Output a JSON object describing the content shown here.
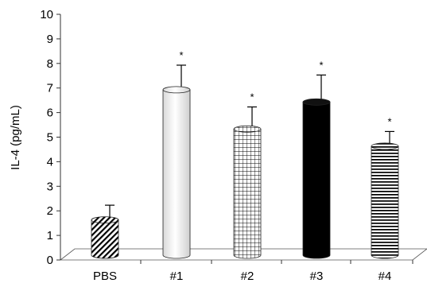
{
  "chart_data": {
    "type": "bar",
    "categories": [
      "PBS",
      "#1",
      "#2",
      "#3",
      "#4"
    ],
    "values": [
      1.5,
      6.8,
      5.2,
      6.3,
      4.5
    ],
    "errors": [
      0.6,
      1.0,
      0.9,
      1.1,
      0.6
    ],
    "significance": [
      "",
      "*",
      "*",
      "*",
      "*"
    ],
    "ylabel": "IL-4 (pg/mL)",
    "xlabel": "",
    "title": "",
    "ylim": [
      0,
      10
    ],
    "yticks": [
      "0",
      "1",
      "2",
      "3",
      "4",
      "5",
      "6",
      "7",
      "8",
      "9",
      "10"
    ],
    "bar_styles": [
      "diagonal-stripes",
      "white",
      "grid",
      "black",
      "horizontal-stripes"
    ],
    "colors": {
      "ink": "#000000",
      "axis": "#333333",
      "floor": "#555555",
      "bar_light": "#ffffff",
      "bar_dark": "#000000"
    },
    "grid": false,
    "legend": "none"
  }
}
